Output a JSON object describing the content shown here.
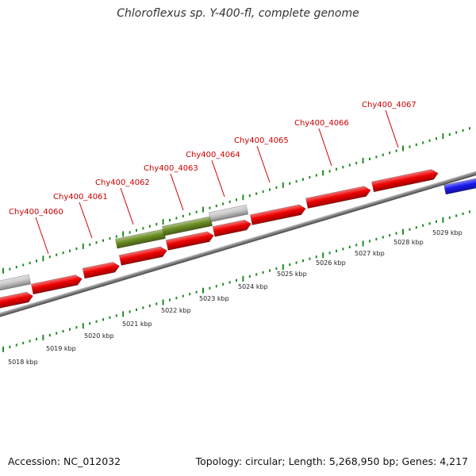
{
  "title": "Chloroflexus sp. Y-400-fl, complete genome",
  "footer": {
    "accession": "Accession: NC_012032",
    "summary": "Topology: circular; Length: 5,268,950 bp; Genes: 4,217"
  },
  "colors": {
    "cds": "#ee0000",
    "green_feature": "#6b8e23",
    "grey_feature": "#c8c8c8",
    "blue_feature": "#1a1aee",
    "tick": "#228b22",
    "backbone": "#808080",
    "label": "#cc0000"
  },
  "gene_labels": [
    {
      "id": "Chy400_4060"
    },
    {
      "id": "Chy400_4061"
    },
    {
      "id": "Chy400_4062"
    },
    {
      "id": "Chy400_4063"
    },
    {
      "id": "Chy400_4064"
    },
    {
      "id": "Chy400_4065"
    },
    {
      "id": "Chy400_4066"
    },
    {
      "id": "Chy400_4067"
    }
  ],
  "kbp_labels": [
    {
      "text": "5018 kbp"
    },
    {
      "text": "5019 kbp"
    },
    {
      "text": "5020 kbp"
    },
    {
      "text": "5021 kbp"
    },
    {
      "text": "5022 kbp"
    },
    {
      "text": "5023 kbp"
    },
    {
      "text": "5024 kbp"
    },
    {
      "text": "5025 kbp"
    },
    {
      "text": "5026 kbp"
    },
    {
      "text": "5027 kbp"
    },
    {
      "text": "5028 kbp"
    },
    {
      "text": "5029 kbp"
    }
  ]
}
